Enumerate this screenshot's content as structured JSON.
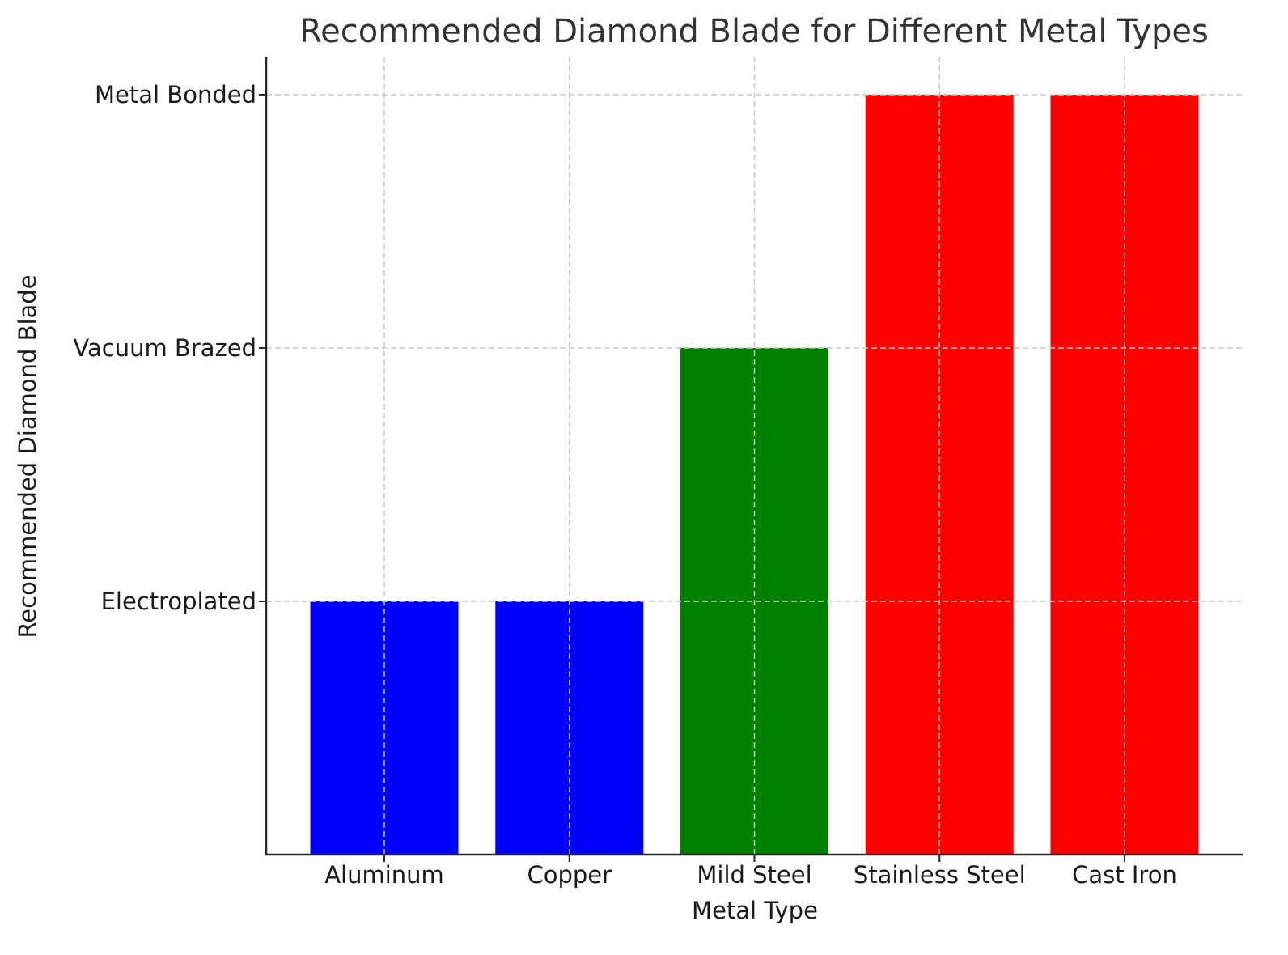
{
  "chart_data": {
    "type": "bar",
    "title": "Recommended Diamond Blade for Different Metal Types",
    "xlabel": "Metal Type",
    "ylabel": "Recommended Diamond Blade",
    "categories": [
      "Aluminum",
      "Copper",
      "Mild Steel",
      "Stainless Steel",
      "Cast Iron"
    ],
    "values": [
      1,
      1,
      2,
      3,
      3
    ],
    "value_labels": [
      "Electroplated",
      "Electroplated",
      "Vacuum Brazed",
      "Metal Bonded",
      "Metal Bonded"
    ],
    "bar_colors": [
      "#0000ff",
      "#0000ff",
      "#008000",
      "#ff0000",
      "#ff0000"
    ],
    "yticks": [
      {
        "value": 1,
        "label": "Electroplated"
      },
      {
        "value": 2,
        "label": "Vacuum Brazed"
      },
      {
        "value": 3,
        "label": "Metal Bonded"
      }
    ],
    "ylim": [
      0,
      3.15
    ],
    "grid": true,
    "grid_style": "dashed",
    "legend": null
  },
  "colors": {
    "title": "#333333",
    "text": "#1a1a1a",
    "axis": "#262626",
    "grid": "#c8c8c8",
    "background": "#ffffff"
  }
}
